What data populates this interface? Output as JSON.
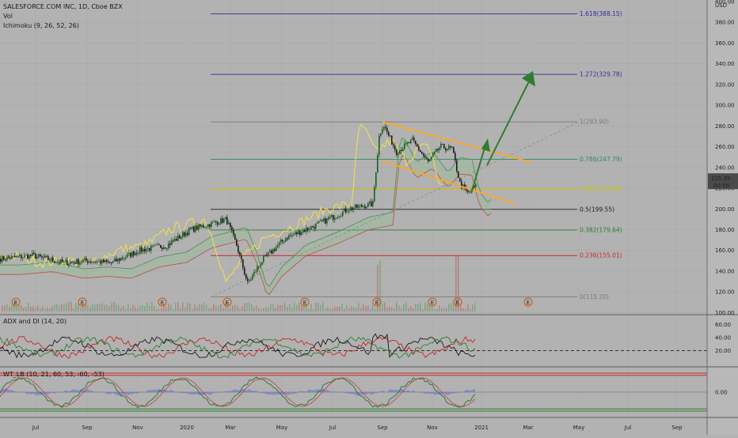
{
  "header": {
    "symbol": "SALESFORCE.COM INC, 1D, Cboe BZX",
    "vol": "Vol",
    "ichimoku": "Ichimoku (9, 26, 52, 26)",
    "adx": "ADX and DI (14, 20)",
    "wt": "WT_LB (10, 21, 60, 53, -60, -53)",
    "currency": "USD"
  },
  "colors": {
    "background": "#b2b2b2",
    "candle_up": "#1b5e20",
    "candle_down": "#1b1b1b",
    "fib_1618": "#2f2f9a",
    "fib_1272": "#2f2f9a",
    "fib_1": "#7a7a7a",
    "fib_0786": "#2e8b57",
    "fib_0618": "#d4c000",
    "fib_05": "#222222",
    "fib_0382": "#2e7d32",
    "fib_0236": "#c62828",
    "fib_0": "#7a7a7a",
    "trendlines": "#ffa726",
    "projection_arrows": "#2e7d32",
    "price_tag": "#4a4a4a"
  },
  "chart_data": [
    {
      "type": "line",
      "panel": "price",
      "title": "SALESFORCE.COM INC, 1D, Cboe BZX",
      "y_unit": "USD",
      "x_ticks": [
        "Jul",
        "Sep",
        "Nov",
        "2020",
        "Mar",
        "May",
        "Jul",
        "Sep",
        "Nov",
        "2021",
        "Mar",
        "May",
        "Jul",
        "Sep"
      ],
      "y_ticks": [
        100,
        120,
        140,
        160,
        180,
        200,
        220,
        240,
        260,
        280,
        300,
        320,
        340,
        360,
        380,
        400
      ],
      "ylim": [
        98,
        400
      ],
      "last_price": "225.95",
      "countdown": "00:56",
      "fib_levels": [
        {
          "label": "1.618(388.15)",
          "value": 388.15,
          "color_key": "fib_1618"
        },
        {
          "label": "1.272(329.78)",
          "value": 329.78,
          "color_key": "fib_1272"
        },
        {
          "label": "1(283.90)",
          "value": 283.9,
          "color_key": "fib_1"
        },
        {
          "label": "0.786(247.79)",
          "value": 247.79,
          "color_key": "fib_0786"
        },
        {
          "label": "0.618(219.45)",
          "value": 219.45,
          "color_key": "fib_0618"
        },
        {
          "label": "0.5(199.55)",
          "value": 199.55,
          "color_key": "fib_05"
        },
        {
          "label": "0.382(179.64)",
          "value": 179.64,
          "color_key": "fib_0382"
        },
        {
          "label": "0.236(155.01)",
          "value": 155.01,
          "color_key": "fib_0236"
        },
        {
          "label": "0(115.20)",
          "value": 115.2,
          "color_key": "fib_0"
        }
      ],
      "series": [
        {
          "name": "Close",
          "x": [
            "2019-06",
            "2019-07",
            "2019-08",
            "2019-09",
            "2019-10",
            "2019-11",
            "2019-12",
            "2020-01",
            "2020-02",
            "2020-03",
            "2020-04",
            "2020-05",
            "2020-06",
            "2020-07",
            "2020-08",
            "2020-09",
            "2020-10",
            "2020-11",
            "2020-12"
          ],
          "values": [
            152,
            155,
            148,
            149,
            148,
            162,
            163,
            182,
            190,
            150,
            160,
            175,
            185,
            195,
            260,
            250,
            255,
            245,
            220
          ]
        }
      ],
      "earnings_markers": [
        "E",
        "E",
        "E",
        "E",
        "E",
        "E",
        "E",
        "E",
        "E"
      ]
    },
    {
      "type": "line",
      "panel": "adx",
      "title": "ADX and DI (14, 20)",
      "y_ticks": [
        20,
        40,
        60
      ],
      "threshold": 20
    },
    {
      "type": "line",
      "panel": "wavetrend",
      "title": "WT_LB (10, 21, 60, 53, -60, -53)",
      "y_ticks": [
        "0.00"
      ],
      "bands": [
        60,
        53,
        -53,
        -60
      ]
    }
  ]
}
